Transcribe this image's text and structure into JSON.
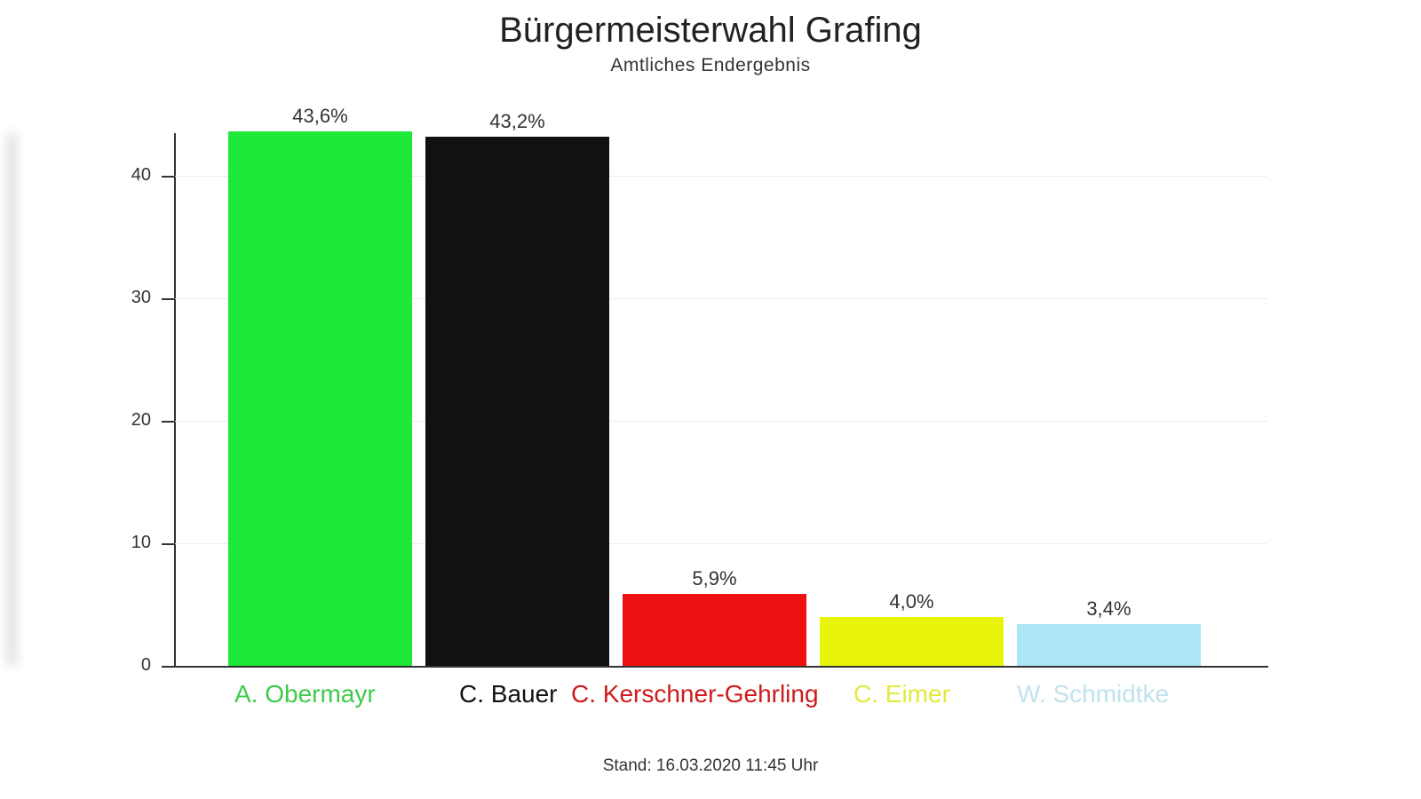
{
  "chart_data": {
    "type": "bar",
    "title": "Bürgermeisterwahl Grafing",
    "subtitle": "Amtliches Endergebnis",
    "categories": [
      "A. Obermayr",
      "C. Bauer",
      "C. Kerschner-Gehrling",
      "C. Eimer",
      "W. Schmidtke"
    ],
    "values": [
      43.6,
      43.2,
      5.9,
      4.0,
      3.4
    ],
    "value_labels": [
      "43,6%",
      "43,2%",
      "5,9%",
      "4,0%",
      "3,4%"
    ],
    "colors": [
      "#1ee83a",
      "#111111",
      "#ee1111",
      "#e8f50a",
      "#ade6f7"
    ],
    "label_colors": [
      "#3ecb4a",
      "#111111",
      "#d01a1a",
      "#e2ea3c",
      "#bfe3ec"
    ],
    "xlabel": "",
    "ylabel": "",
    "ylim": [
      0,
      45
    ],
    "yticks": [
      0,
      10,
      20,
      30,
      40
    ],
    "grid": true,
    "legend": "none",
    "footer": "Stand: 16.03.2020 11:45 Uhr"
  }
}
